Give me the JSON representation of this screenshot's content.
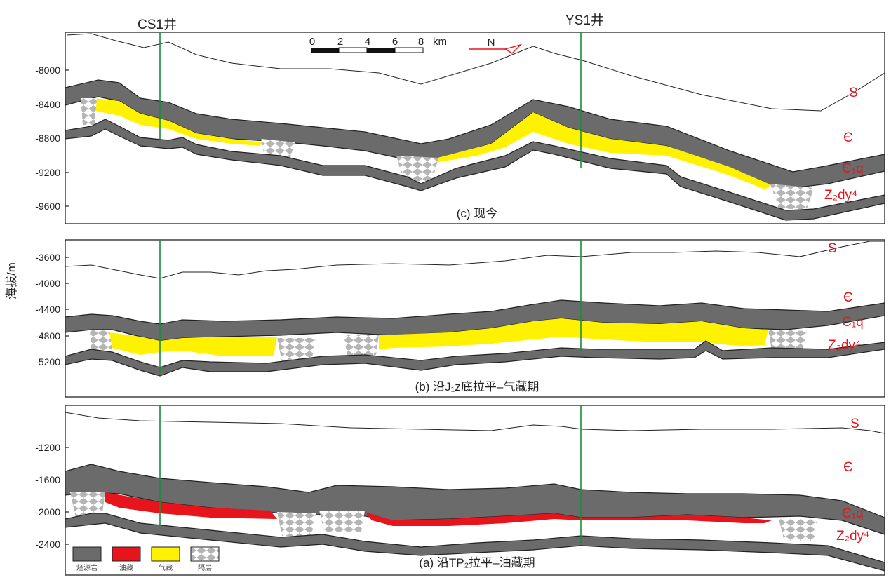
{
  "wells": [
    {
      "name": "CS1井"
    },
    {
      "name": "YS1井"
    }
  ],
  "axis_title": "海拔/m",
  "panels": [
    {
      "id": "c",
      "caption": "(c) 现今",
      "ticks": [
        "-8000",
        "-8400",
        "-8800",
        "-9200",
        "-9600"
      ],
      "strata": [
        "S",
        "Є",
        "Є₁q",
        "Z₂dy⁴"
      ]
    },
    {
      "id": "b",
      "caption": "(b) 沿J₁z底拉平–气藏期",
      "ticks": [
        "-3600",
        "-4000",
        "-4400",
        "-4800",
        "-5200"
      ],
      "strata": [
        "S",
        "Є",
        "Є₁q",
        "Z₂dy⁴"
      ]
    },
    {
      "id": "a",
      "caption": "(a) 沿TP₂拉平–油藏期",
      "ticks": [
        "-1200",
        "-1600",
        "-2000",
        "-2400"
      ],
      "strata": [
        "S",
        "Є",
        "Є₁q",
        "Z₂dy⁴"
      ]
    }
  ],
  "scale_bar": {
    "labels": [
      "0",
      "2",
      "4",
      "6",
      "8"
    ],
    "unit": "km"
  },
  "north": {
    "label": "N"
  },
  "legend": [
    {
      "label": "烃源岩",
      "color": "#6b6b6b"
    },
    {
      "label": "油藏",
      "color": "#e8141c"
    },
    {
      "label": "气藏",
      "color": "#fff200"
    },
    {
      "label": "隔层",
      "color": "#bdbdbd"
    }
  ]
}
